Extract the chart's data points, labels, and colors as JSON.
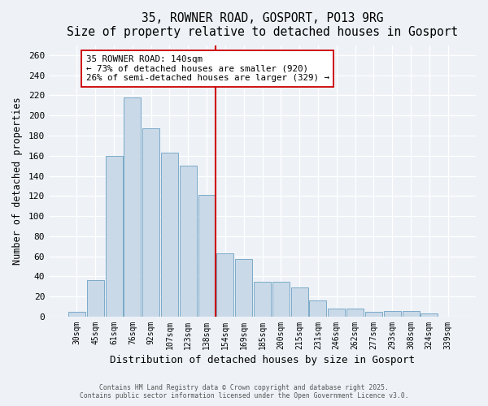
{
  "title": "35, ROWNER ROAD, GOSPORT, PO13 9RG",
  "subtitle": "Size of property relative to detached houses in Gosport",
  "xlabel": "Distribution of detached houses by size in Gosport",
  "ylabel": "Number of detached properties",
  "bar_labels": [
    "30sqm",
    "45sqm",
    "61sqm",
    "76sqm",
    "92sqm",
    "107sqm",
    "123sqm",
    "138sqm",
    "154sqm",
    "169sqm",
    "185sqm",
    "200sqm",
    "215sqm",
    "231sqm",
    "246sqm",
    "262sqm",
    "277sqm",
    "293sqm",
    "308sqm",
    "324sqm",
    "339sqm"
  ],
  "bar_values": [
    5,
    36,
    160,
    218,
    187,
    163,
    150,
    121,
    63,
    57,
    35,
    35,
    29,
    16,
    8,
    8,
    5,
    6,
    6,
    3,
    0
  ],
  "bar_color": "#c9d9e8",
  "bar_edgecolor": "#7aaac8",
  "highlight_line_color": "#cc0000",
  "annotation_line1": "35 ROWNER ROAD: 140sqm",
  "annotation_line2": "← 73% of detached houses are smaller (920)",
  "annotation_line3": "26% of semi-detached houses are larger (329) →",
  "annotation_box_edgecolor": "#cc0000",
  "ylim": [
    0,
    270
  ],
  "yticks": [
    0,
    20,
    40,
    60,
    80,
    100,
    120,
    140,
    160,
    180,
    200,
    220,
    240,
    260
  ],
  "background_color": "#eef2f7",
  "grid_color": "#ffffff",
  "footer_line1": "Contains HM Land Registry data © Crown copyright and database right 2025.",
  "footer_line2": "Contains public sector information licensed under the Open Government Licence v3.0."
}
